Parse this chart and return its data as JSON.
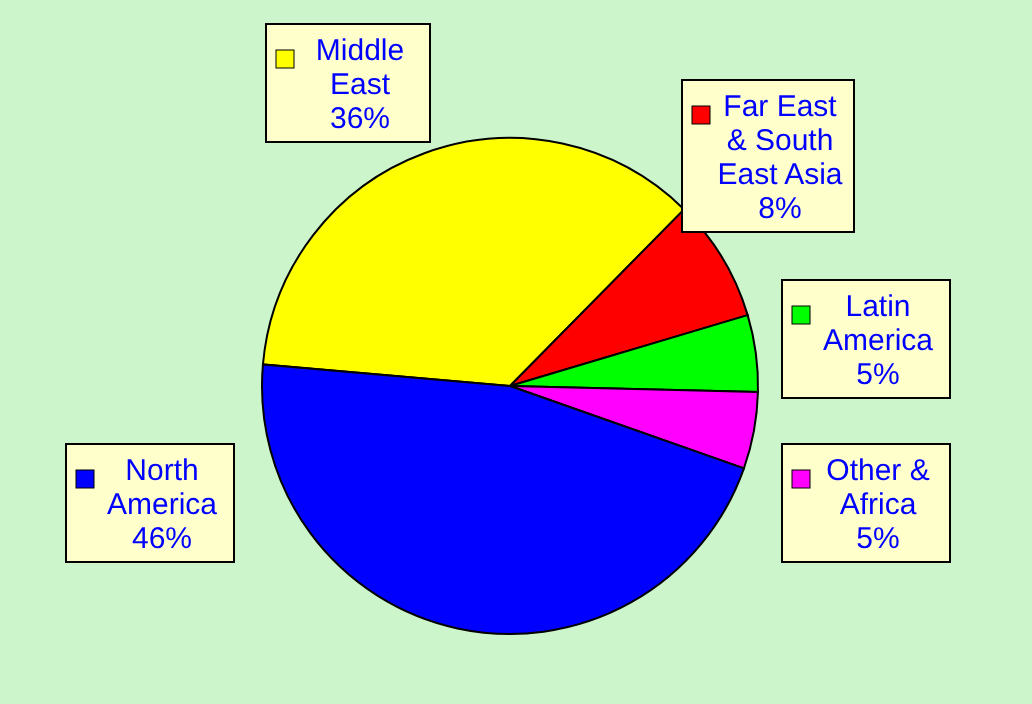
{
  "chart_data": {
    "type": "pie",
    "categories": [
      "Middle East",
      "Far East & South East Asia",
      "Latin America",
      "Other & Africa",
      "North America"
    ],
    "values": [
      36,
      8,
      5,
      5,
      46
    ],
    "value_labels": [
      "36%",
      "8%",
      "5%",
      "5%",
      "46%"
    ],
    "colors": [
      "#ffff00",
      "#ff0000",
      "#00ff00",
      "#ff00ff",
      "#0000ff"
    ],
    "legend": "right"
  }
}
